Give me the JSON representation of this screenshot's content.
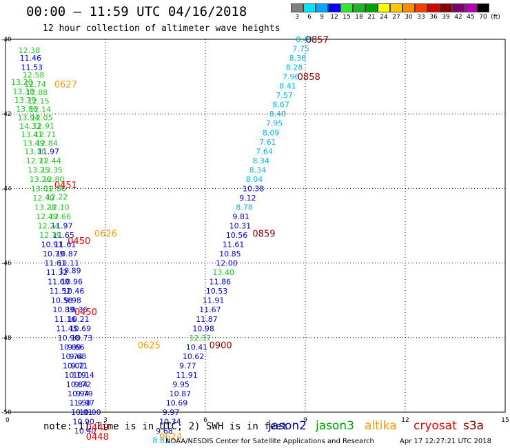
{
  "header": {
    "title": "00:00 – 11:59 UTC 04/16/2018",
    "subtitle": "12 hour collection of altimeter wave heights"
  },
  "colorbar": {
    "labels": [
      "3",
      "6",
      "9",
      "12",
      "15",
      "18",
      "21",
      "24",
      "27",
      "30",
      "33",
      "36",
      "39",
      "42",
      "45",
      "70"
    ],
    "colors": [
      "#808080",
      "#00e5ff",
      "#00a8ff",
      "#0000ff",
      "#32e632",
      "#22b422",
      "#00a000",
      "#ffff00",
      "#ffc800",
      "#ff8c00",
      "#ff3c00",
      "#d20000",
      "#8c0000",
      "#7a0070",
      "#b400b4",
      "#000000"
    ],
    "unit": "(ft)"
  },
  "axes": {
    "x_ticks": [
      "0",
      "3",
      "6",
      "9",
      "12",
      "15"
    ],
    "y_ticks": [
      "-40",
      "-42",
      "-44",
      "-46",
      "-48",
      "-50"
    ],
    "xlim": [
      0,
      15
    ],
    "ylim": [
      -50,
      -40
    ]
  },
  "note": "note:  1) Time is in UTC;  2) SWH is in feet",
  "satellites": [
    {
      "name": "jason2",
      "color": "#0000cc"
    },
    {
      "name": "jason3",
      "color": "#00a000"
    },
    {
      "name": "altika",
      "color": "#ff9900"
    },
    {
      "name": "cryosat",
      "color": "#ee0000"
    },
    {
      "name": "s3a",
      "color": "#880000"
    }
  ],
  "footer": {
    "org": "NOAA/NESDIS Center for Satellite Applications and Research",
    "stamp": "Apr 17 12:27:21 UTC 2018"
  },
  "chart_data": {
    "type": "scatter",
    "title": "00:00 – 11:59 UTC 04/16/2018",
    "subtitle": "12 hour collection of altimeter wave heights",
    "xlim": [
      0,
      15
    ],
    "ylim": [
      -50,
      -40
    ],
    "grid": true,
    "colors": {
      "s3a": "#880000",
      "s3a_text": "#00b4e6",
      "jason2": "#0000cc",
      "jason3": "#22c422",
      "altika": "#ff9900",
      "cryosat": "#ee0000"
    },
    "track_points": [
      {
        "x": 0.22,
        "y": -40.3,
        "v": "12.38",
        "c": "jason3"
      },
      {
        "x": 0.26,
        "y": -40.5,
        "v": "11.46",
        "c": "jason2"
      },
      {
        "x": 0.3,
        "y": -40.75,
        "v": "11.53",
        "c": "jason2"
      },
      {
        "x": 0.35,
        "y": -40.95,
        "v": "12.58",
        "c": "jason3"
      },
      {
        "x": 0.4,
        "y": -41.2,
        "v": "12.74",
        "c": "jason3"
      },
      {
        "x": 0.45,
        "y": -41.42,
        "v": "12.88",
        "c": "jason3"
      },
      {
        "x": 0.5,
        "y": -41.65,
        "v": "12.15",
        "c": "jason3"
      },
      {
        "x": 0.55,
        "y": -41.88,
        "v": "12.14",
        "c": "jason3"
      },
      {
        "x": 0.6,
        "y": -42.1,
        "v": "12.05",
        "c": "jason3"
      },
      {
        "x": 0.65,
        "y": -42.32,
        "v": "12.91",
        "c": "jason3"
      },
      {
        "x": 0.7,
        "y": -42.55,
        "v": "12.71",
        "c": "jason3"
      },
      {
        "x": 0.75,
        "y": -42.78,
        "v": "12.84",
        "c": "jason3"
      },
      {
        "x": 0.8,
        "y": -43.0,
        "v": "11.97",
        "c": "jason2"
      },
      {
        "x": 0.85,
        "y": -43.25,
        "v": "12.44",
        "c": "jason3"
      },
      {
        "x": 0.9,
        "y": -43.5,
        "v": "13.35",
        "c": "jason3"
      },
      {
        "x": 0.95,
        "y": -43.75,
        "v": "12.80",
        "c": "jason3"
      },
      {
        "x": 1.0,
        "y": -44.0,
        "v": "12.86",
        "c": "jason3"
      },
      {
        "x": 1.05,
        "y": -44.22,
        "v": "12.22",
        "c": "jason3"
      },
      {
        "x": 1.1,
        "y": -44.5,
        "v": "12.10",
        "c": "jason3"
      },
      {
        "x": 1.15,
        "y": -44.75,
        "v": "12.66",
        "c": "jason3"
      },
      {
        "x": 1.2,
        "y": -45.0,
        "v": "11.97",
        "c": "jason2"
      },
      {
        "x": 1.25,
        "y": -45.25,
        "v": "11.65",
        "c": "jason2"
      },
      {
        "x": 1.3,
        "y": -45.5,
        "v": "11.61",
        "c": "jason2"
      },
      {
        "x": 1.35,
        "y": -45.75,
        "v": "10.87",
        "c": "jason2"
      },
      {
        "x": 1.4,
        "y": -46.0,
        "v": "11.11",
        "c": "jason2"
      },
      {
        "x": 1.45,
        "y": -46.2,
        "v": "10.89",
        "c": "jason2"
      },
      {
        "x": 1.5,
        "y": -46.5,
        "v": "10.96",
        "c": "jason2"
      },
      {
        "x": 1.55,
        "y": -46.75,
        "v": "10.46",
        "c": "jason2"
      },
      {
        "x": 1.6,
        "y": -47.0,
        "v": "9.98",
        "c": "jason2"
      },
      {
        "x": 1.65,
        "y": -47.25,
        "v": "10.36",
        "c": "jason2"
      },
      {
        "x": 1.7,
        "y": -47.5,
        "v": "10.21",
        "c": "jason2"
      },
      {
        "x": 1.75,
        "y": -47.75,
        "v": "10.69",
        "c": "jason2"
      },
      {
        "x": 1.8,
        "y": -48.0,
        "v": "10.73",
        "c": "jason2"
      },
      {
        "x": 1.7,
        "y": -48.25,
        "v": "9.66",
        "c": "jason2"
      },
      {
        "x": 1.75,
        "y": -48.5,
        "v": "9.68",
        "c": "jason2"
      },
      {
        "x": 1.8,
        "y": -48.75,
        "v": "9.71",
        "c": "jason2"
      },
      {
        "x": 1.85,
        "y": -49.0,
        "v": "10.14",
        "c": "jason2"
      },
      {
        "x": 1.9,
        "y": -49.25,
        "v": "9.72",
        "c": "jason2"
      },
      {
        "x": 1.95,
        "y": -49.5,
        "v": "9.79",
        "c": "jason2"
      },
      {
        "x": 2.0,
        "y": -49.75,
        "v": "9.97",
        "c": "jason2"
      },
      {
        "x": 2.05,
        "y": -50.0,
        "v": "10.00",
        "c": "jason2"
      },
      {
        "x": 0.0,
        "y": -41.15,
        "v": "13.20",
        "c": "jason3"
      },
      {
        "x": 0.05,
        "y": -41.4,
        "v": "13.38",
        "c": "jason3"
      },
      {
        "x": 0.1,
        "y": -41.63,
        "v": "13.79",
        "c": "jason3"
      },
      {
        "x": 0.15,
        "y": -41.87,
        "v": "13.86",
        "c": "jason3"
      },
      {
        "x": 0.2,
        "y": -42.1,
        "v": "13.94",
        "c": "jason3"
      },
      {
        "x": 0.25,
        "y": -42.33,
        "v": "14.32",
        "c": "jason3"
      },
      {
        "x": 0.3,
        "y": -42.55,
        "v": "13.41",
        "c": "jason3"
      },
      {
        "x": 0.35,
        "y": -42.78,
        "v": "13.49",
        "c": "jason3"
      },
      {
        "x": 0.4,
        "y": -43.0,
        "v": "13.10",
        "c": "jason3"
      },
      {
        "x": 0.45,
        "y": -43.25,
        "v": "12.71",
        "c": "jason3"
      },
      {
        "x": 0.5,
        "y": -43.5,
        "v": "13.25",
        "c": "jason3"
      },
      {
        "x": 0.55,
        "y": -43.75,
        "v": "13.26",
        "c": "jason3"
      },
      {
        "x": 0.6,
        "y": -44.0,
        "v": "13.01",
        "c": "jason3"
      },
      {
        "x": 0.65,
        "y": -44.25,
        "v": "12.40",
        "c": "jason3"
      },
      {
        "x": 0.7,
        "y": -44.5,
        "v": "13.28",
        "c": "jason3"
      },
      {
        "x": 0.75,
        "y": -44.75,
        "v": "12.49",
        "c": "jason3"
      },
      {
        "x": 0.8,
        "y": -45.0,
        "v": "12.24",
        "c": "jason3"
      },
      {
        "x": 0.85,
        "y": -45.25,
        "v": "12.79",
        "c": "jason3"
      },
      {
        "x": 0.9,
        "y": -45.5,
        "v": "10.91",
        "c": "jason2"
      },
      {
        "x": 0.95,
        "y": -45.75,
        "v": "10.79",
        "c": "jason2"
      },
      {
        "x": 1.0,
        "y": -46.0,
        "v": "11.61",
        "c": "jason2"
      },
      {
        "x": 1.05,
        "y": -46.25,
        "v": "11.32",
        "c": "jason2"
      },
      {
        "x": 1.1,
        "y": -46.5,
        "v": "11.60",
        "c": "jason2"
      },
      {
        "x": 1.15,
        "y": -46.75,
        "v": "11.52",
        "c": "jason2"
      },
      {
        "x": 1.2,
        "y": -47.0,
        "v": "10.58",
        "c": "jason2"
      },
      {
        "x": 1.25,
        "y": -47.25,
        "v": "10.89",
        "c": "jason2"
      },
      {
        "x": 1.3,
        "y": -47.5,
        "v": "11.16",
        "c": "jason2"
      },
      {
        "x": 1.35,
        "y": -47.75,
        "v": "11.45",
        "c": "jason2"
      },
      {
        "x": 1.4,
        "y": -48.0,
        "v": "10.90",
        "c": "jason2"
      },
      {
        "x": 1.45,
        "y": -48.25,
        "v": "10.89",
        "c": "jason2"
      },
      {
        "x": 1.5,
        "y": -48.5,
        "v": "10.74",
        "c": "jason2"
      },
      {
        "x": 1.55,
        "y": -48.75,
        "v": "10.02",
        "c": "jason2"
      },
      {
        "x": 1.6,
        "y": -49.0,
        "v": "10.19",
        "c": "jason2"
      },
      {
        "x": 1.65,
        "y": -49.25,
        "v": "10.84",
        "c": "jason2"
      },
      {
        "x": 1.7,
        "y": -49.5,
        "v": "10.94",
        "c": "jason2"
      },
      {
        "x": 1.75,
        "y": -49.75,
        "v": "11.50",
        "c": "jason2"
      },
      {
        "x": 1.8,
        "y": -50.0,
        "v": "10.01",
        "c": "jason2"
      },
      {
        "x": 1.85,
        "y": -50.25,
        "v": "10.90",
        "c": "jason2"
      },
      {
        "x": 1.9,
        "y": -50.5,
        "v": "10.40",
        "c": "jason2"
      },
      {
        "x": 8.55,
        "y": -40.0,
        "v": "8.49",
        "c": "s3a_text"
      },
      {
        "x": 8.45,
        "y": -40.25,
        "v": "7.75",
        "c": "s3a_text"
      },
      {
        "x": 8.35,
        "y": -40.5,
        "v": "8.36",
        "c": "s3a_text"
      },
      {
        "x": 8.25,
        "y": -40.75,
        "v": "8.28",
        "c": "s3a_text"
      },
      {
        "x": 8.15,
        "y": -41.0,
        "v": "7.96",
        "c": "s3a_text"
      },
      {
        "x": 8.05,
        "y": -41.25,
        "v": "8.41",
        "c": "s3a_text"
      },
      {
        "x": 7.95,
        "y": -41.5,
        "v": "7.57",
        "c": "s3a_text"
      },
      {
        "x": 7.85,
        "y": -41.75,
        "v": "8.67",
        "c": "s3a_text"
      },
      {
        "x": 7.75,
        "y": -42.0,
        "v": "8.40",
        "c": "s3a_text"
      },
      {
        "x": 7.65,
        "y": -42.25,
        "v": "7.95",
        "c": "s3a_text"
      },
      {
        "x": 7.55,
        "y": -42.5,
        "v": "8.09",
        "c": "s3a_text"
      },
      {
        "x": 7.45,
        "y": -42.75,
        "v": "7.61",
        "c": "s3a_text"
      },
      {
        "x": 7.35,
        "y": -43.0,
        "v": "7.64",
        "c": "s3a_text"
      },
      {
        "x": 7.25,
        "y": -43.25,
        "v": "8.34",
        "c": "s3a_text"
      },
      {
        "x": 7.15,
        "y": -43.5,
        "v": "8.34",
        "c": "s3a_text"
      },
      {
        "x": 7.05,
        "y": -43.75,
        "v": "8.04",
        "c": "s3a_text"
      },
      {
        "x": 6.95,
        "y": -44.0,
        "v": "10.38",
        "c": "jason2"
      },
      {
        "x": 6.85,
        "y": -44.25,
        "v": "9.12",
        "c": "jason2"
      },
      {
        "x": 6.75,
        "y": -44.5,
        "v": "8.78",
        "c": "s3a_text"
      },
      {
        "x": 6.65,
        "y": -44.75,
        "v": "9.81",
        "c": "jason2"
      },
      {
        "x": 6.55,
        "y": -45.0,
        "v": "10.31",
        "c": "jason2"
      },
      {
        "x": 6.45,
        "y": -45.25,
        "v": "10.56",
        "c": "jason2"
      },
      {
        "x": 6.35,
        "y": -45.5,
        "v": "11.61",
        "c": "jason2"
      },
      {
        "x": 6.25,
        "y": -45.75,
        "v": "10.85",
        "c": "jason2"
      },
      {
        "x": 6.15,
        "y": -46.0,
        "v": "12.00",
        "c": "jason2"
      },
      {
        "x": 6.05,
        "y": -46.25,
        "v": "13.40",
        "c": "jason3"
      },
      {
        "x": 5.95,
        "y": -46.5,
        "v": "11.86",
        "c": "jason2"
      },
      {
        "x": 5.85,
        "y": -46.75,
        "v": "10.53",
        "c": "jason2"
      },
      {
        "x": 5.75,
        "y": -47.0,
        "v": "11.91",
        "c": "jason2"
      },
      {
        "x": 5.65,
        "y": -47.25,
        "v": "11.67",
        "c": "jason2"
      },
      {
        "x": 5.55,
        "y": -47.5,
        "v": "11.87",
        "c": "jason2"
      },
      {
        "x": 5.45,
        "y": -47.75,
        "v": "10.98",
        "c": "jason2"
      },
      {
        "x": 5.35,
        "y": -48.0,
        "v": "12.37",
        "c": "jason3"
      },
      {
        "x": 5.25,
        "y": -48.25,
        "v": "10.41",
        "c": "jason2"
      },
      {
        "x": 5.15,
        "y": -48.5,
        "v": "10.62",
        "c": "jason2"
      },
      {
        "x": 5.05,
        "y": -48.75,
        "v": "9.77",
        "c": "jason2"
      },
      {
        "x": 4.95,
        "y": -49.0,
        "v": "11.91",
        "c": "jason2"
      },
      {
        "x": 4.85,
        "y": -49.25,
        "v": "9.95",
        "c": "jason2"
      },
      {
        "x": 4.75,
        "y": -49.5,
        "v": "10.87",
        "c": "jason2"
      },
      {
        "x": 4.65,
        "y": -49.75,
        "v": "10.69",
        "c": "jason2"
      },
      {
        "x": 4.55,
        "y": -50.0,
        "v": "9.97",
        "c": "jason2"
      },
      {
        "x": 4.45,
        "y": -50.25,
        "v": "10.34",
        "c": "jason2"
      },
      {
        "x": 4.35,
        "y": -50.5,
        "v": "9.68",
        "c": "jason2"
      },
      {
        "x": 4.25,
        "y": -50.75,
        "v": "8.81",
        "c": "s3a_text"
      }
    ],
    "time_labels": [
      {
        "x": 1.3,
        "y": -41.2,
        "t": "0627",
        "c": "altika"
      },
      {
        "x": 1.3,
        "y": -43.9,
        "t": "0451",
        "c": "cryosat"
      },
      {
        "x": 2.5,
        "y": -45.2,
        "t": "0626",
        "c": "altika"
      },
      {
        "x": 1.7,
        "y": -45.4,
        "t": "0450",
        "c": "cryosat"
      },
      {
        "x": 1.9,
        "y": -47.3,
        "t": "0450",
        "c": "cryosat"
      },
      {
        "x": 3.8,
        "y": -48.2,
        "t": "0625",
        "c": "altika"
      },
      {
        "x": 2.25,
        "y": -50.4,
        "t": "0449",
        "c": "cryosat"
      },
      {
        "x": 2.25,
        "y": -50.65,
        "t": "0448",
        "c": "cryosat"
      },
      {
        "x": 4.45,
        "y": -50.65,
        "t": "0624",
        "c": "altika"
      },
      {
        "x": 8.85,
        "y": -40.0,
        "t": "0857",
        "c": "s3a"
      },
      {
        "x": 8.6,
        "y": -41.0,
        "t": "0858",
        "c": "s3a"
      },
      {
        "x": 7.25,
        "y": -45.2,
        "t": "0859",
        "c": "s3a"
      },
      {
        "x": 5.95,
        "y": -48.2,
        "t": "0900",
        "c": "s3a"
      }
    ]
  }
}
